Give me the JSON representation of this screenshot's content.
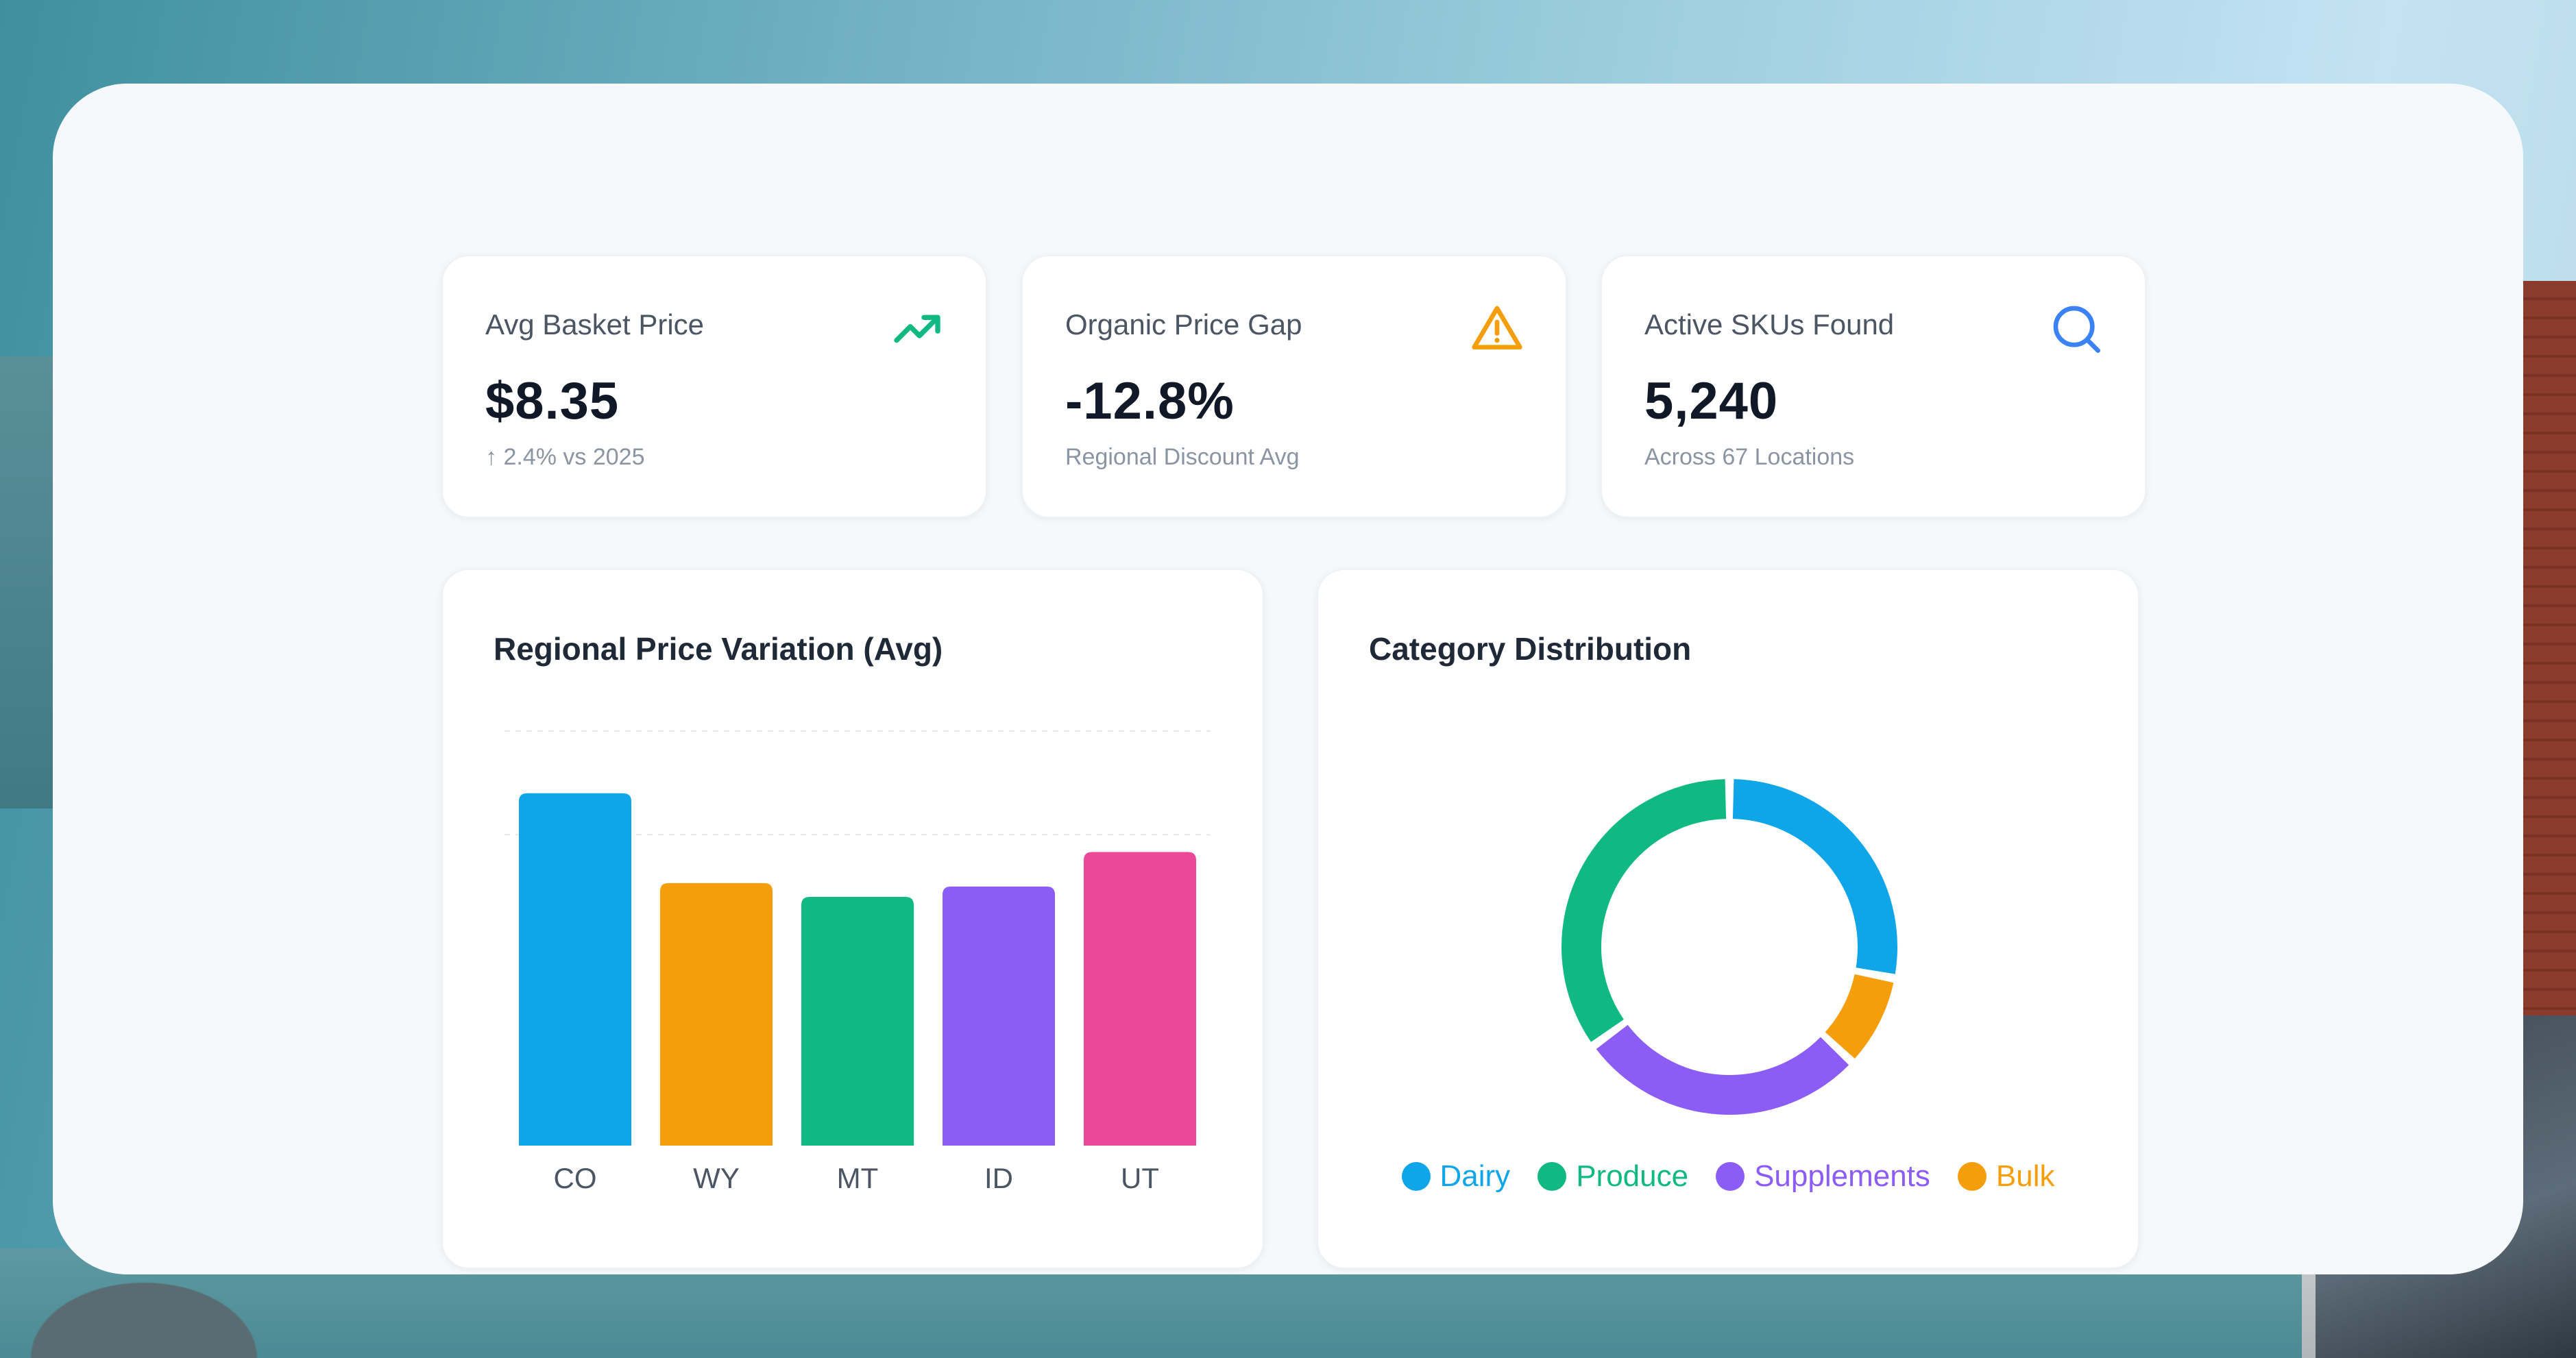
{
  "stats": [
    {
      "label": "Avg Basket Price",
      "value": "$8.35",
      "sub": "↑ 2.4% vs 2025",
      "icon": "trending-up-icon",
      "icon_color": "#10b981"
    },
    {
      "label": "Organic Price Gap",
      "value": "-12.8%",
      "sub": "Regional Discount Avg",
      "icon": "warning-icon",
      "icon_color": "#f59e0b"
    },
    {
      "label": "Active SKUs Found",
      "value": "5,240",
      "sub": "Across 67 Locations",
      "icon": "search-icon",
      "icon_color": "#3b82f6"
    }
  ],
  "bar_chart": {
    "title": "Regional Price Variation (Avg)"
  },
  "donut_chart": {
    "title": "Category Distribution"
  },
  "chart_data": [
    {
      "type": "bar",
      "title": "Regional Price Variation (Avg)",
      "categories": [
        "CO",
        "WY",
        "MT",
        "ID",
        "UT"
      ],
      "values": [
        10.2,
        7.6,
        7.2,
        7.5,
        8.5
      ],
      "colors": [
        "#0ea5e9",
        "#f59e0b",
        "#10b981",
        "#8b5cf6",
        "#ec4899"
      ],
      "ylim": [
        0,
        12
      ],
      "grid": true,
      "legend": "none"
    },
    {
      "type": "pie",
      "title": "Category Distribution",
      "donut": true,
      "labels": [
        "Dairy",
        "Bulk",
        "Supplements",
        "Produce"
      ],
      "values": [
        28,
        9,
        28,
        35
      ],
      "colors": [
        "#0ea5e9",
        "#f59e0b",
        "#8b5cf6",
        "#10b981"
      ],
      "legend_order": [
        "Dairy",
        "Produce",
        "Supplements",
        "Bulk"
      ],
      "legend": "bottom"
    }
  ]
}
